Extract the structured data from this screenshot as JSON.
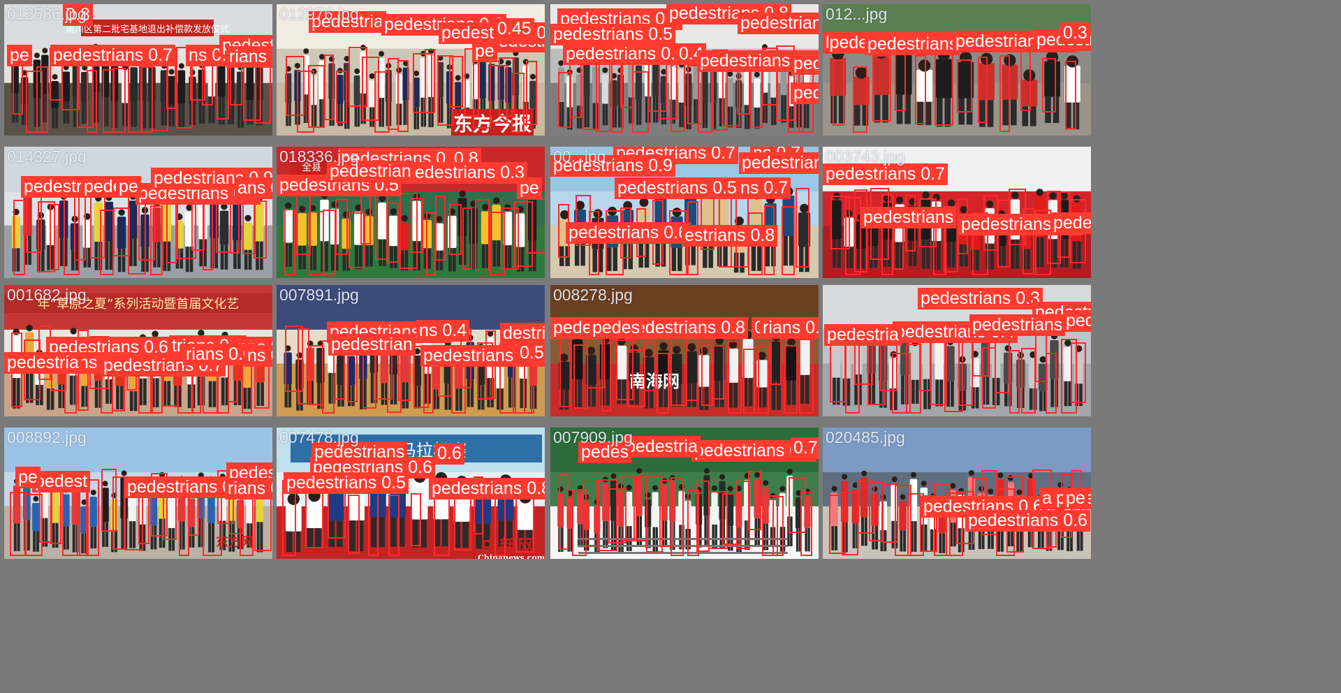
{
  "colors": {
    "box_stroke": "#ff2a2a",
    "label_bg": "#ff3b30",
    "label_text": "#ffffff",
    "gap": "#7a7a7a"
  },
  "tiles": [
    {
      "filename": "012586.jpg",
      "banner": "南川区第二批宅基地退出补偿款发放仪式",
      "labels": [
        "pedestrians 0.7",
        "ns 0.8",
        "pedestrians 0.4",
        "rians 0.8",
        "0.8",
        "pe"
      ]
    },
    {
      "filename": "012976.jpg",
      "watermark": "东方今报",
      "labels": [
        "pedestria",
        "pedestrians 0.3",
        "pedestrians",
        "pedestrians 0.6",
        "0.45",
        "pe"
      ]
    },
    {
      "filename": "",
      "labels": [
        "pedestrians 0.5",
        "pedestrians 0.8",
        "pedestrians 0.8",
        "pedestrians 0.5",
        "pedestrians 0.3",
        "0.4",
        "pedestrians 0.4",
        "pedestrians 0.7",
        "pedestrians 0.3"
      ]
    },
    {
      "filename": "012...jpg",
      "labels": [
        "lpedestrians 0.7",
        "pedestrians",
        "pedestrians 0.3",
        "pedestrians 0.3",
        "0.3"
      ]
    },
    {
      "filename": "014327.jpg",
      "labels": [
        "pedestrians 0.5",
        "pedestri",
        "pede",
        "pe",
        "pedestrians 0.90",
        "ans 0.9"
      ]
    },
    {
      "filename": "018336.jpg",
      "banner": "全县",
      "labels": [
        "pedestrians 0.8",
        "0.8",
        "pedestrians 0.3",
        "pedestrians 0.5",
        "pedestrian",
        "pe"
      ]
    },
    {
      "filename": "00...jpg",
      "labels": [
        "pedestrians 0.7",
        "ns 0.7",
        "pedestrians 0.9",
        "pedestrians",
        "pedestrians 0.5",
        "ns 0.7",
        "pedestrians 0.6",
        "estrians 0.8"
      ]
    },
    {
      "filename": "003743.jpg",
      "labels": [
        "pedestrians 0.7",
        "pedestrians",
        "pedestrians 0.3",
        "pedes"
      ]
    },
    {
      "filename": "001682.jpg",
      "banner": "年“草原之夏”系列活动暨首届文化艺",
      "labels": [
        "pedestrians 0.6",
        "trians 0.8",
        "ns 0.8",
        "ns 0.9",
        "pedestrians 0.4",
        "pedestria",
        "pedestrians 0.7",
        "rians 0.6",
        "ns 0.7"
      ]
    },
    {
      "filename": "007891.jpg",
      "labels": [
        "pedestrians 0.3",
        "ns 0.4",
        "destrians",
        "pedestrians 0.3",
        "0.5",
        "pedestrian"
      ]
    },
    {
      "filename": "008278.jpg",
      "watermark": "南海网",
      "labels": [
        "pedestrians 0.8",
        "0.8",
        "pedes",
        "pedes",
        "rians 0.9"
      ]
    },
    {
      "filename": "",
      "labels": [
        "pedestrians 0.3",
        "pedestrians 0.4",
        "pedestrians 0.4",
        "pedestria",
        "pedestrians",
        "pede"
      ]
    },
    {
      "filename": "008892.jpg",
      "watermark": "东方网",
      "labels": [
        "pedestrians 0.3",
        "pedest",
        "pe",
        "pedestrians",
        "rians 0"
      ]
    },
    {
      "filename": "007478.jpg",
      "banner": "国际马拉松赛",
      "watermark": "中新网",
      "watermark_sub": "Chinanews.com",
      "labels": [
        "pedestrians 0.6",
        "pedestrians 0.5",
        "pedestrians 0.8",
        "pedestrians",
        "0.6"
      ]
    },
    {
      "filename": "007909.jpg",
      "labels": [
        "pedestrians 0.3",
        "pedestria",
        "0.7s 0.78",
        "pedes"
      ]
    },
    {
      "filename": "020485.jpg",
      "labels": [
        "pedestrians 0.6",
        "pedestrians 0.6",
        "pedes",
        "pe",
        "a"
      ]
    }
  ]
}
